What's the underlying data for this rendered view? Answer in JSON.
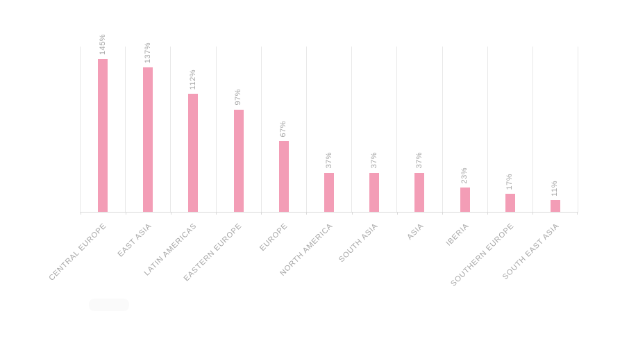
{
  "chart_data": {
    "type": "bar",
    "title": "",
    "xlabel": "",
    "ylabel": "",
    "categories": [
      "CENTRAL EUROPE",
      "EAST ASIA",
      "LATIN AMERICAS",
      "EASTERN EUROPE",
      "EUROPE",
      "NORTH AMERICA",
      "SOUTH ASIA",
      "ASIA",
      "IBERIA",
      "SOUTHERN EUROPE",
      "SOUTH EAST ASIA"
    ],
    "values": [
      145,
      137,
      112,
      97,
      67,
      37,
      37,
      37,
      23,
      17,
      11
    ],
    "value_labels": [
      "145%",
      "137%",
      "112%",
      "97%",
      "67%",
      "37%",
      "37%",
      "37%",
      "23%",
      "17%",
      "11%"
    ],
    "unit": "%",
    "ylim": [
      0,
      157
    ],
    "legend": "none",
    "grid": "vertical-column-separators",
    "value_label_rotation_deg": 90,
    "category_label_rotation_deg": 45,
    "colors": {
      "bar": "#F39DB6",
      "labels": "#A5A5A5",
      "gridline": "#E8E8E8",
      "axis": "#D9D9D9",
      "background": "#FFFFFF"
    }
  }
}
